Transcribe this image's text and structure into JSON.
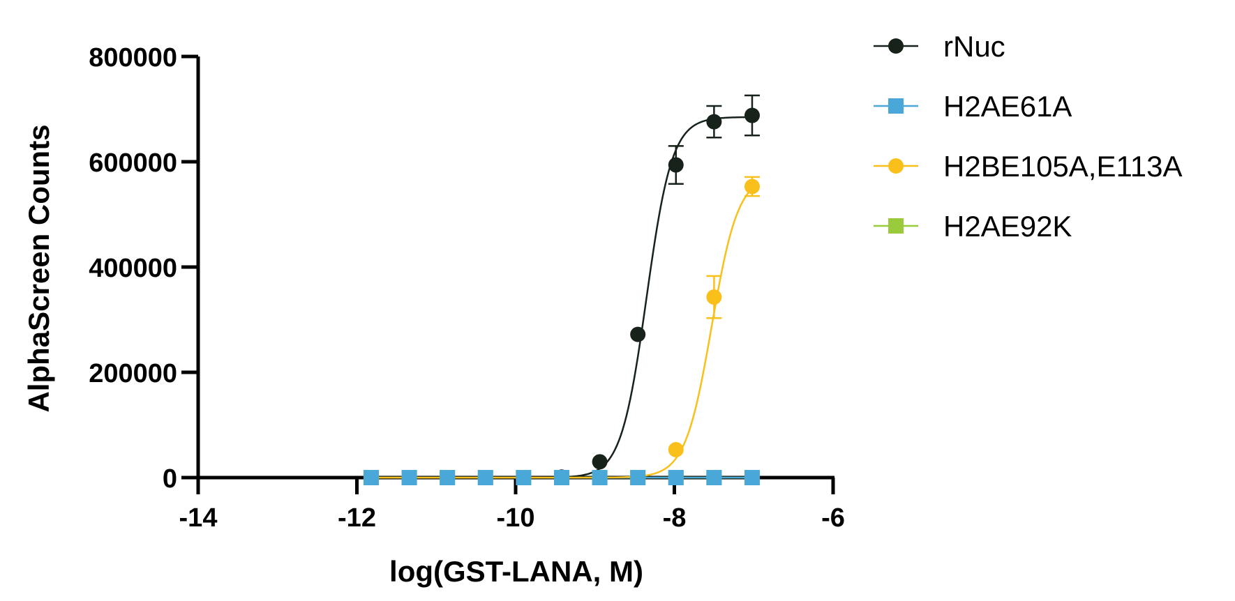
{
  "chart_data": {
    "type": "scatter",
    "xlabel": "log(GST-LANA, M)",
    "ylabel": "AlphaScreen Counts",
    "xlim": [
      -14,
      -6
    ],
    "ylim": [
      0,
      800000
    ],
    "xticks": [
      "-14",
      "-12",
      "-10",
      "-8",
      "-6"
    ],
    "yticks": [
      "0",
      "200000",
      "400000",
      "600000",
      "800000"
    ],
    "legend_position": "top-right",
    "grid": false,
    "series": [
      {
        "name": "rNuc",
        "color": "#17231a",
        "marker": "circle",
        "x": [
          -11.82,
          -11.34,
          -10.86,
          -10.38,
          -9.9,
          -9.42,
          -8.94,
          -8.46,
          -7.98,
          -7.5,
          -7.02
        ],
        "y": [
          0,
          0,
          0,
          0,
          0,
          1000,
          30000,
          272000,
          594000,
          676000,
          688000
        ],
        "error": [
          0,
          0,
          0,
          0,
          0,
          0,
          0,
          0,
          36000,
          30000,
          38000
        ],
        "fit": {
          "bottom": 0,
          "top": 685000,
          "log_ec50": -8.35,
          "hill": 2.7
        }
      },
      {
        "name": "H2AE61A",
        "color": "#4aa8d8",
        "marker": "square",
        "x": [
          -11.82,
          -11.34,
          -10.86,
          -10.38,
          -9.9,
          -9.42,
          -8.94,
          -8.46,
          -7.98,
          -7.5,
          -7.02
        ],
        "y": [
          0,
          0,
          0,
          0,
          0,
          0,
          0,
          0,
          0,
          0,
          0
        ],
        "error": [
          0,
          0,
          0,
          0,
          0,
          0,
          0,
          0,
          0,
          0,
          0
        ]
      },
      {
        "name": "H2BE105A,E113A",
        "color": "#f9c01c",
        "marker": "circle",
        "x": [
          -11.82,
          -11.34,
          -10.86,
          -10.38,
          -9.9,
          -9.42,
          -8.94,
          -8.46,
          -7.98,
          -7.5,
          -7.02
        ],
        "y": [
          0,
          0,
          0,
          0,
          0,
          0,
          0,
          0,
          53000,
          343000,
          553000
        ],
        "error": [
          0,
          0,
          0,
          0,
          0,
          0,
          0,
          0,
          0,
          40000,
          18000
        ],
        "fit": {
          "bottom": 0,
          "top": 575000,
          "log_ec50": -7.53,
          "hill": 2.6
        }
      },
      {
        "name": "H2AE92K",
        "color": "#9acb3c",
        "marker": "square",
        "x": [
          -11.82,
          -11.34,
          -10.86,
          -10.38,
          -9.9,
          -9.42,
          -8.94,
          -8.46,
          -7.98,
          -7.5,
          -7.02
        ],
        "y": [
          0,
          0,
          0,
          0,
          0,
          0,
          0,
          0,
          0,
          0,
          0
        ],
        "error": [
          0,
          0,
          0,
          0,
          0,
          0,
          0,
          0,
          0,
          0,
          0
        ]
      }
    ]
  }
}
